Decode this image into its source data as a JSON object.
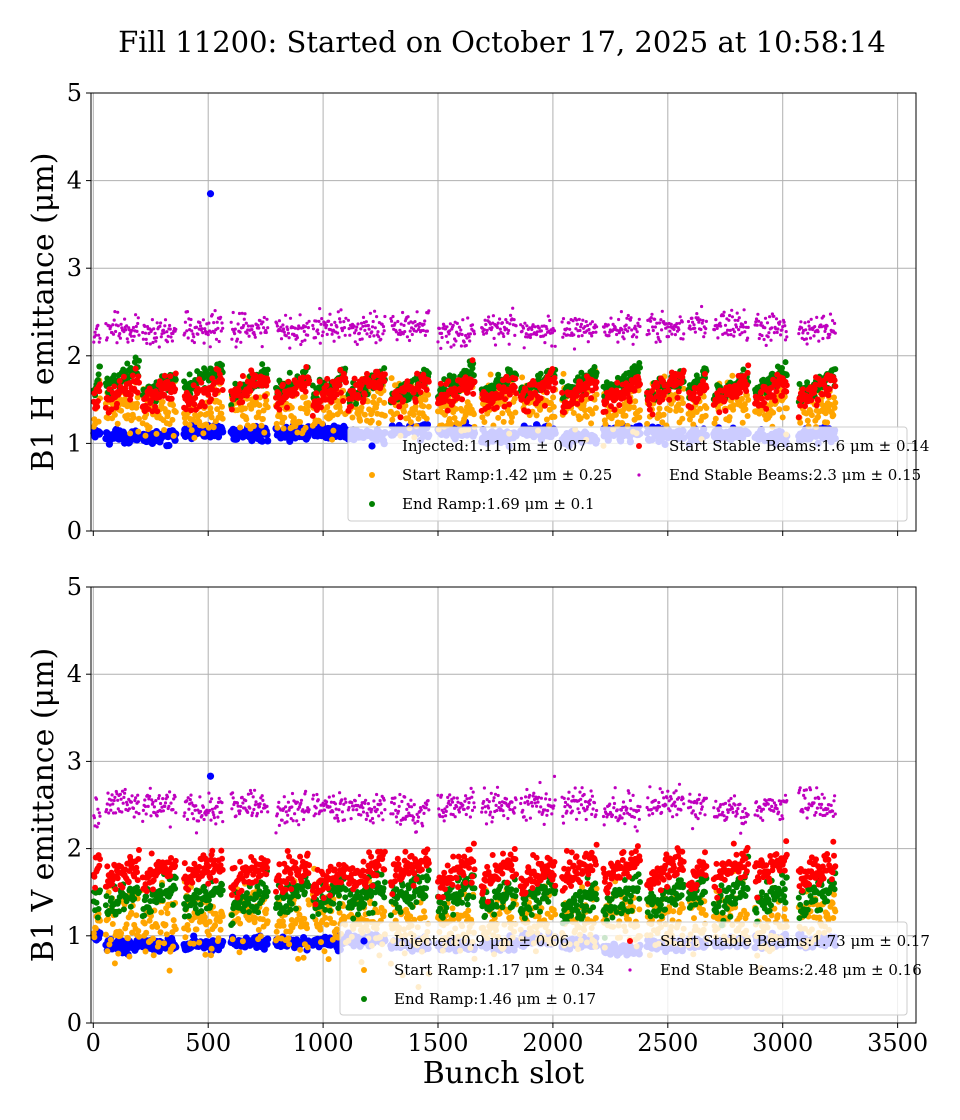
{
  "title": "Fill 11200: Started on October 17, 2025 at 10:58:14",
  "colors": {
    "injected": "#0000ff",
    "start_ramp": "#ffa500",
    "end_ramp": "#008000",
    "start_stable": "#ff0000",
    "end_stable": "#bf00bf"
  },
  "chart_data": [
    {
      "type": "scatter",
      "id": "b1h",
      "ylabel": "B1 H emittance (μm)",
      "xlabel": "",
      "xlim": [
        -10,
        3580
      ],
      "ylim": [
        0,
        5
      ],
      "xticks": [
        0,
        500,
        1000,
        1500,
        2000,
        2500,
        3000,
        3500
      ],
      "yticks": [
        0,
        1,
        2,
        3,
        4,
        5
      ],
      "show_xtick_labels": false,
      "grid": true,
      "legend_position": "lower-right",
      "trains": [
        [
          2,
          30
        ],
        [
          55,
          200
        ],
        [
          215,
          360
        ],
        [
          395,
          565
        ],
        [
          600,
          760
        ],
        [
          795,
          940
        ],
        [
          955,
          1100
        ],
        [
          1110,
          1270
        ],
        [
          1295,
          1460
        ],
        [
          1500,
          1660
        ],
        [
          1690,
          1840
        ],
        [
          1860,
          2010
        ],
        [
          2040,
          2190
        ],
        [
          2220,
          2380
        ],
        [
          2410,
          2570
        ],
        [
          2590,
          2670
        ],
        [
          2700,
          2850
        ],
        [
          2880,
          3020
        ],
        [
          3070,
          3230
        ]
      ],
      "series": [
        {
          "name": "Injected",
          "legend": "Injected:1.11 μm ± 0.07",
          "color_key": "injected",
          "mean": 1.11,
          "std": 0.07,
          "marker_size": 3.6,
          "outliers": [
            [
              510,
              3.85
            ]
          ]
        },
        {
          "name": "Start Ramp",
          "legend": "Start Ramp:1.42 μm ± 0.25",
          "color_key": "start_ramp",
          "mean": 1.42,
          "std": 0.25,
          "marker_size": 3.0,
          "outliers": []
        },
        {
          "name": "End Ramp",
          "legend": "End Ramp:1.69 μm ± 0.1",
          "color_key": "end_ramp",
          "mean": 1.69,
          "std": 0.1,
          "marker_size": 3.0,
          "outliers": []
        },
        {
          "name": "Start Stable Beams",
          "legend": "Start Stable Beams:1.6 μm ± 0.14",
          "color_key": "start_stable",
          "mean": 1.6,
          "std": 0.14,
          "marker_size": 3.0,
          "outliers": []
        },
        {
          "name": "End Stable Beams",
          "legend": "End Stable Beams:2.3 μm ± 0.15",
          "color_key": "end_stable",
          "mean": 2.3,
          "std": 0.15,
          "marker_size": 1.6,
          "outliers": []
        }
      ]
    },
    {
      "type": "scatter",
      "id": "b1v",
      "ylabel": "B1 V emittance (μm)",
      "xlabel": "Bunch slot",
      "xlim": [
        -10,
        3580
      ],
      "ylim": [
        0,
        5
      ],
      "xticks": [
        0,
        500,
        1000,
        1500,
        2000,
        2500,
        3000,
        3500
      ],
      "yticks": [
        0,
        1,
        2,
        3,
        4,
        5
      ],
      "show_xtick_labels": true,
      "grid": true,
      "legend_position": "lower-right",
      "trains": [
        [
          2,
          30
        ],
        [
          55,
          200
        ],
        [
          215,
          360
        ],
        [
          395,
          565
        ],
        [
          600,
          760
        ],
        [
          795,
          940
        ],
        [
          955,
          1100
        ],
        [
          1110,
          1270
        ],
        [
          1295,
          1460
        ],
        [
          1500,
          1660
        ],
        [
          1690,
          1840
        ],
        [
          1860,
          2010
        ],
        [
          2040,
          2190
        ],
        [
          2220,
          2380
        ],
        [
          2410,
          2570
        ],
        [
          2590,
          2670
        ],
        [
          2700,
          2850
        ],
        [
          2880,
          3020
        ],
        [
          3070,
          3230
        ]
      ],
      "series": [
        {
          "name": "Injected",
          "legend": "Injected:0.9 μm ± 0.06",
          "color_key": "injected",
          "mean": 0.9,
          "std": 0.06,
          "marker_size": 3.6,
          "outliers": [
            [
              510,
              2.83
            ]
          ]
        },
        {
          "name": "Start Ramp",
          "legend": "Start Ramp:1.17 μm ± 0.34",
          "color_key": "start_ramp",
          "mean": 1.17,
          "std": 0.34,
          "marker_size": 3.0,
          "outliers": []
        },
        {
          "name": "End Ramp",
          "legend": "End Ramp:1.46 μm ± 0.17",
          "color_key": "end_ramp",
          "mean": 1.46,
          "std": 0.17,
          "marker_size": 3.0,
          "outliers": []
        },
        {
          "name": "Start Stable Beams",
          "legend": "Start Stable Beams:1.73 μm ± 0.17",
          "color_key": "start_stable",
          "mean": 1.73,
          "std": 0.17,
          "marker_size": 3.0,
          "outliers": []
        },
        {
          "name": "End Stable Beams",
          "legend": "End Stable Beams:2.48 μm ± 0.16",
          "color_key": "end_stable",
          "mean": 2.48,
          "std": 0.16,
          "marker_size": 1.6,
          "outliers": []
        }
      ]
    }
  ]
}
